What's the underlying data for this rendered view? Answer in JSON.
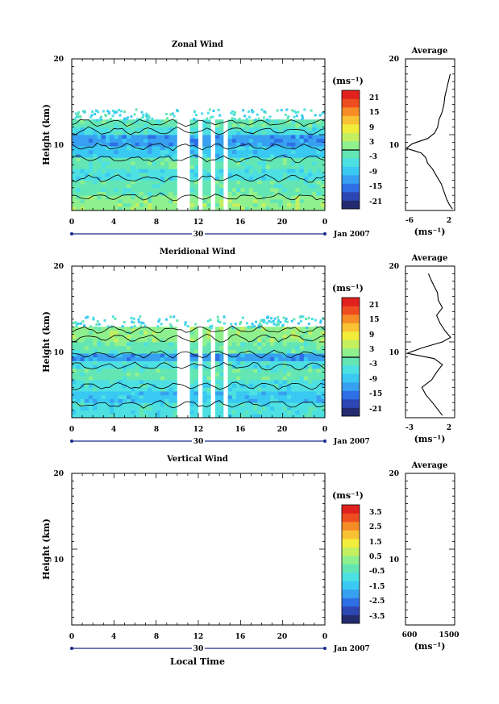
{
  "colors": {
    "palette": [
      "#232b6e",
      "#2c46b3",
      "#2f6fe6",
      "#38a0f0",
      "#39c9f2",
      "#4de0e2",
      "#63e6b4",
      "#8ff08e",
      "#c4f060",
      "#f2ec3a",
      "#f9c234",
      "#f68c26",
      "#ee4d1f",
      "#e0211e"
    ],
    "contour": "#000000",
    "white": "#ffffff"
  },
  "chart_data": [
    {
      "type": "heatmap",
      "title": "Zonal Wind",
      "ylabel": "Height (km)",
      "ylim": [
        0,
        20
      ],
      "yticks": [
        "20",
        "10"
      ],
      "xlim": [
        0,
        24
      ],
      "xticks": [
        "0",
        "4",
        "8",
        "12",
        "16",
        "20",
        "0"
      ],
      "date_label": "30",
      "date_right": "Jan 2007",
      "colorbar": {
        "unit": "(ms⁻¹)",
        "range": [
          -24,
          24
        ],
        "ticks": [
          "21",
          "15",
          "9",
          "3",
          "-3",
          "-9",
          "-15",
          "-21"
        ]
      },
      "data_range_km": [
        0,
        12
      ],
      "gaps_hours": [
        [
          10.0,
          10.6
        ],
        [
          10.9,
          11.3
        ],
        [
          11.9,
          12.2
        ],
        [
          13.4,
          13.7
        ],
        [
          14.5,
          14.8
        ]
      ],
      "field": [
        {
          "z0": 0,
          "z1": 2,
          "level": 7
        },
        {
          "z0": 2,
          "z1": 4,
          "level": 6
        },
        {
          "z0": 4,
          "z1": 5.5,
          "level": 5
        },
        {
          "z0": 5.5,
          "z1": 7,
          "level": 6
        },
        {
          "z0": 7,
          "z1": 8.5,
          "level": 4
        },
        {
          "z0": 8.5,
          "z1": 10,
          "level": 3
        },
        {
          "z0": 10,
          "z1": 11,
          "level": 5
        },
        {
          "z0": 11,
          "z1": 12,
          "level": 6
        }
      ],
      "average": {
        "title": "Average",
        "xlim": [
          -8,
          3
        ],
        "xticks": [
          "-6",
          "2"
        ],
        "xlabel": "(ms⁻¹)",
        "yticks": [
          "20",
          "10"
        ],
        "profile_z": [
          0.2,
          0.8,
          1.5,
          2.5,
          3.5,
          4.5,
          5.5,
          6.2,
          7.0,
          7.6,
          8.2,
          8.8,
          9.5,
          10.2,
          11.0,
          12.0,
          13.0,
          14.0,
          15.0,
          16.0,
          17.0,
          18.0
        ],
        "profile_u": [
          2.5,
          1.8,
          1.2,
          0.6,
          0.0,
          -1.0,
          -2.0,
          -3.0,
          -3.5,
          -4.5,
          -7.8,
          -6.5,
          -3.0,
          -1.5,
          -0.8,
          -0.5,
          0.2,
          0.6,
          0.8,
          1.2,
          1.6,
          2.0
        ]
      }
    },
    {
      "type": "heatmap",
      "title": "Meridional Wind",
      "ylabel": "Height (km)",
      "ylim": [
        0,
        20
      ],
      "yticks": [
        "20",
        "10"
      ],
      "xlim": [
        0,
        24
      ],
      "xticks": [
        "0",
        "4",
        "8",
        "12",
        "16",
        "20",
        "0"
      ],
      "date_label": "30",
      "date_right": "Jan 2007",
      "colorbar": {
        "unit": "(ms⁻¹)",
        "range": [
          -24,
          24
        ],
        "ticks": [
          "21",
          "15",
          "9",
          "3",
          "-3",
          "-9",
          "-15",
          "-21"
        ]
      },
      "data_range_km": [
        0,
        12
      ],
      "gaps_hours": [
        [
          10.0,
          10.6
        ],
        [
          10.9,
          11.3
        ],
        [
          11.9,
          12.2
        ],
        [
          13.4,
          13.7
        ],
        [
          14.5,
          14.8
        ]
      ],
      "field": [
        {
          "z0": 0,
          "z1": 2,
          "level": 5
        },
        {
          "z0": 2,
          "z1": 3.5,
          "level": 4
        },
        {
          "z0": 3.5,
          "z1": 5,
          "level": 5
        },
        {
          "z0": 5,
          "z1": 6.5,
          "level": 6
        },
        {
          "z0": 6.5,
          "z1": 7.5,
          "level": 5
        },
        {
          "z0": 7.5,
          "z1": 8.5,
          "level": 3
        },
        {
          "z0": 8.5,
          "z1": 10,
          "level": 6
        },
        {
          "z0": 10,
          "z1": 12,
          "level": 7
        }
      ],
      "average": {
        "title": "Average",
        "xlim": [
          -3,
          3
        ],
        "xticks": [
          "-3",
          "2"
        ],
        "xlabel": "(ms⁻¹)",
        "yticks": [
          "20",
          "10"
        ],
        "profile_z": [
          0.3,
          1.0,
          2.0,
          3.0,
          4.0,
          5.0,
          6.0,
          7.0,
          7.8,
          8.5,
          9.2,
          10.0,
          10.6,
          11.5,
          12.5,
          13.5,
          14.5,
          15.5,
          16.5,
          18.0,
          19.0
        ],
        "profile_u": [
          1.5,
          1.0,
          0.3,
          -0.5,
          -1.0,
          0.2,
          0.8,
          1.5,
          0.5,
          -2.8,
          -1.0,
          1.5,
          2.5,
          1.8,
          1.2,
          0.8,
          1.5,
          1.0,
          0.9,
          0.2,
          -0.2
        ]
      }
    },
    {
      "type": "heatmap",
      "title": "Vertical Wind",
      "ylabel": "Height (km)",
      "xlabel": "Local Time",
      "ylim": [
        0,
        20
      ],
      "yticks": [
        "20",
        "10"
      ],
      "xlim": [
        0,
        24
      ],
      "xticks": [
        "0",
        "4",
        "8",
        "12",
        "16",
        "20",
        "0"
      ],
      "date_label": "30",
      "date_right": "Jan 2007",
      "colorbar": {
        "unit": "(ms⁻¹)",
        "range": [
          -4,
          4
        ],
        "ticks": [
          "3.5",
          "2.5",
          "1.5",
          "0.5",
          "-0.5",
          "-1.5",
          "-2.5",
          "-3.5"
        ]
      },
      "field": [],
      "average": {
        "title": "Average",
        "xlim": [
          0,
          2000
        ],
        "xticks": [
          "600",
          "1500"
        ],
        "xlabel": "(ms⁻¹)",
        "yticks": [
          "20",
          "10"
        ],
        "profile_z": [],
        "profile_u": []
      }
    }
  ]
}
